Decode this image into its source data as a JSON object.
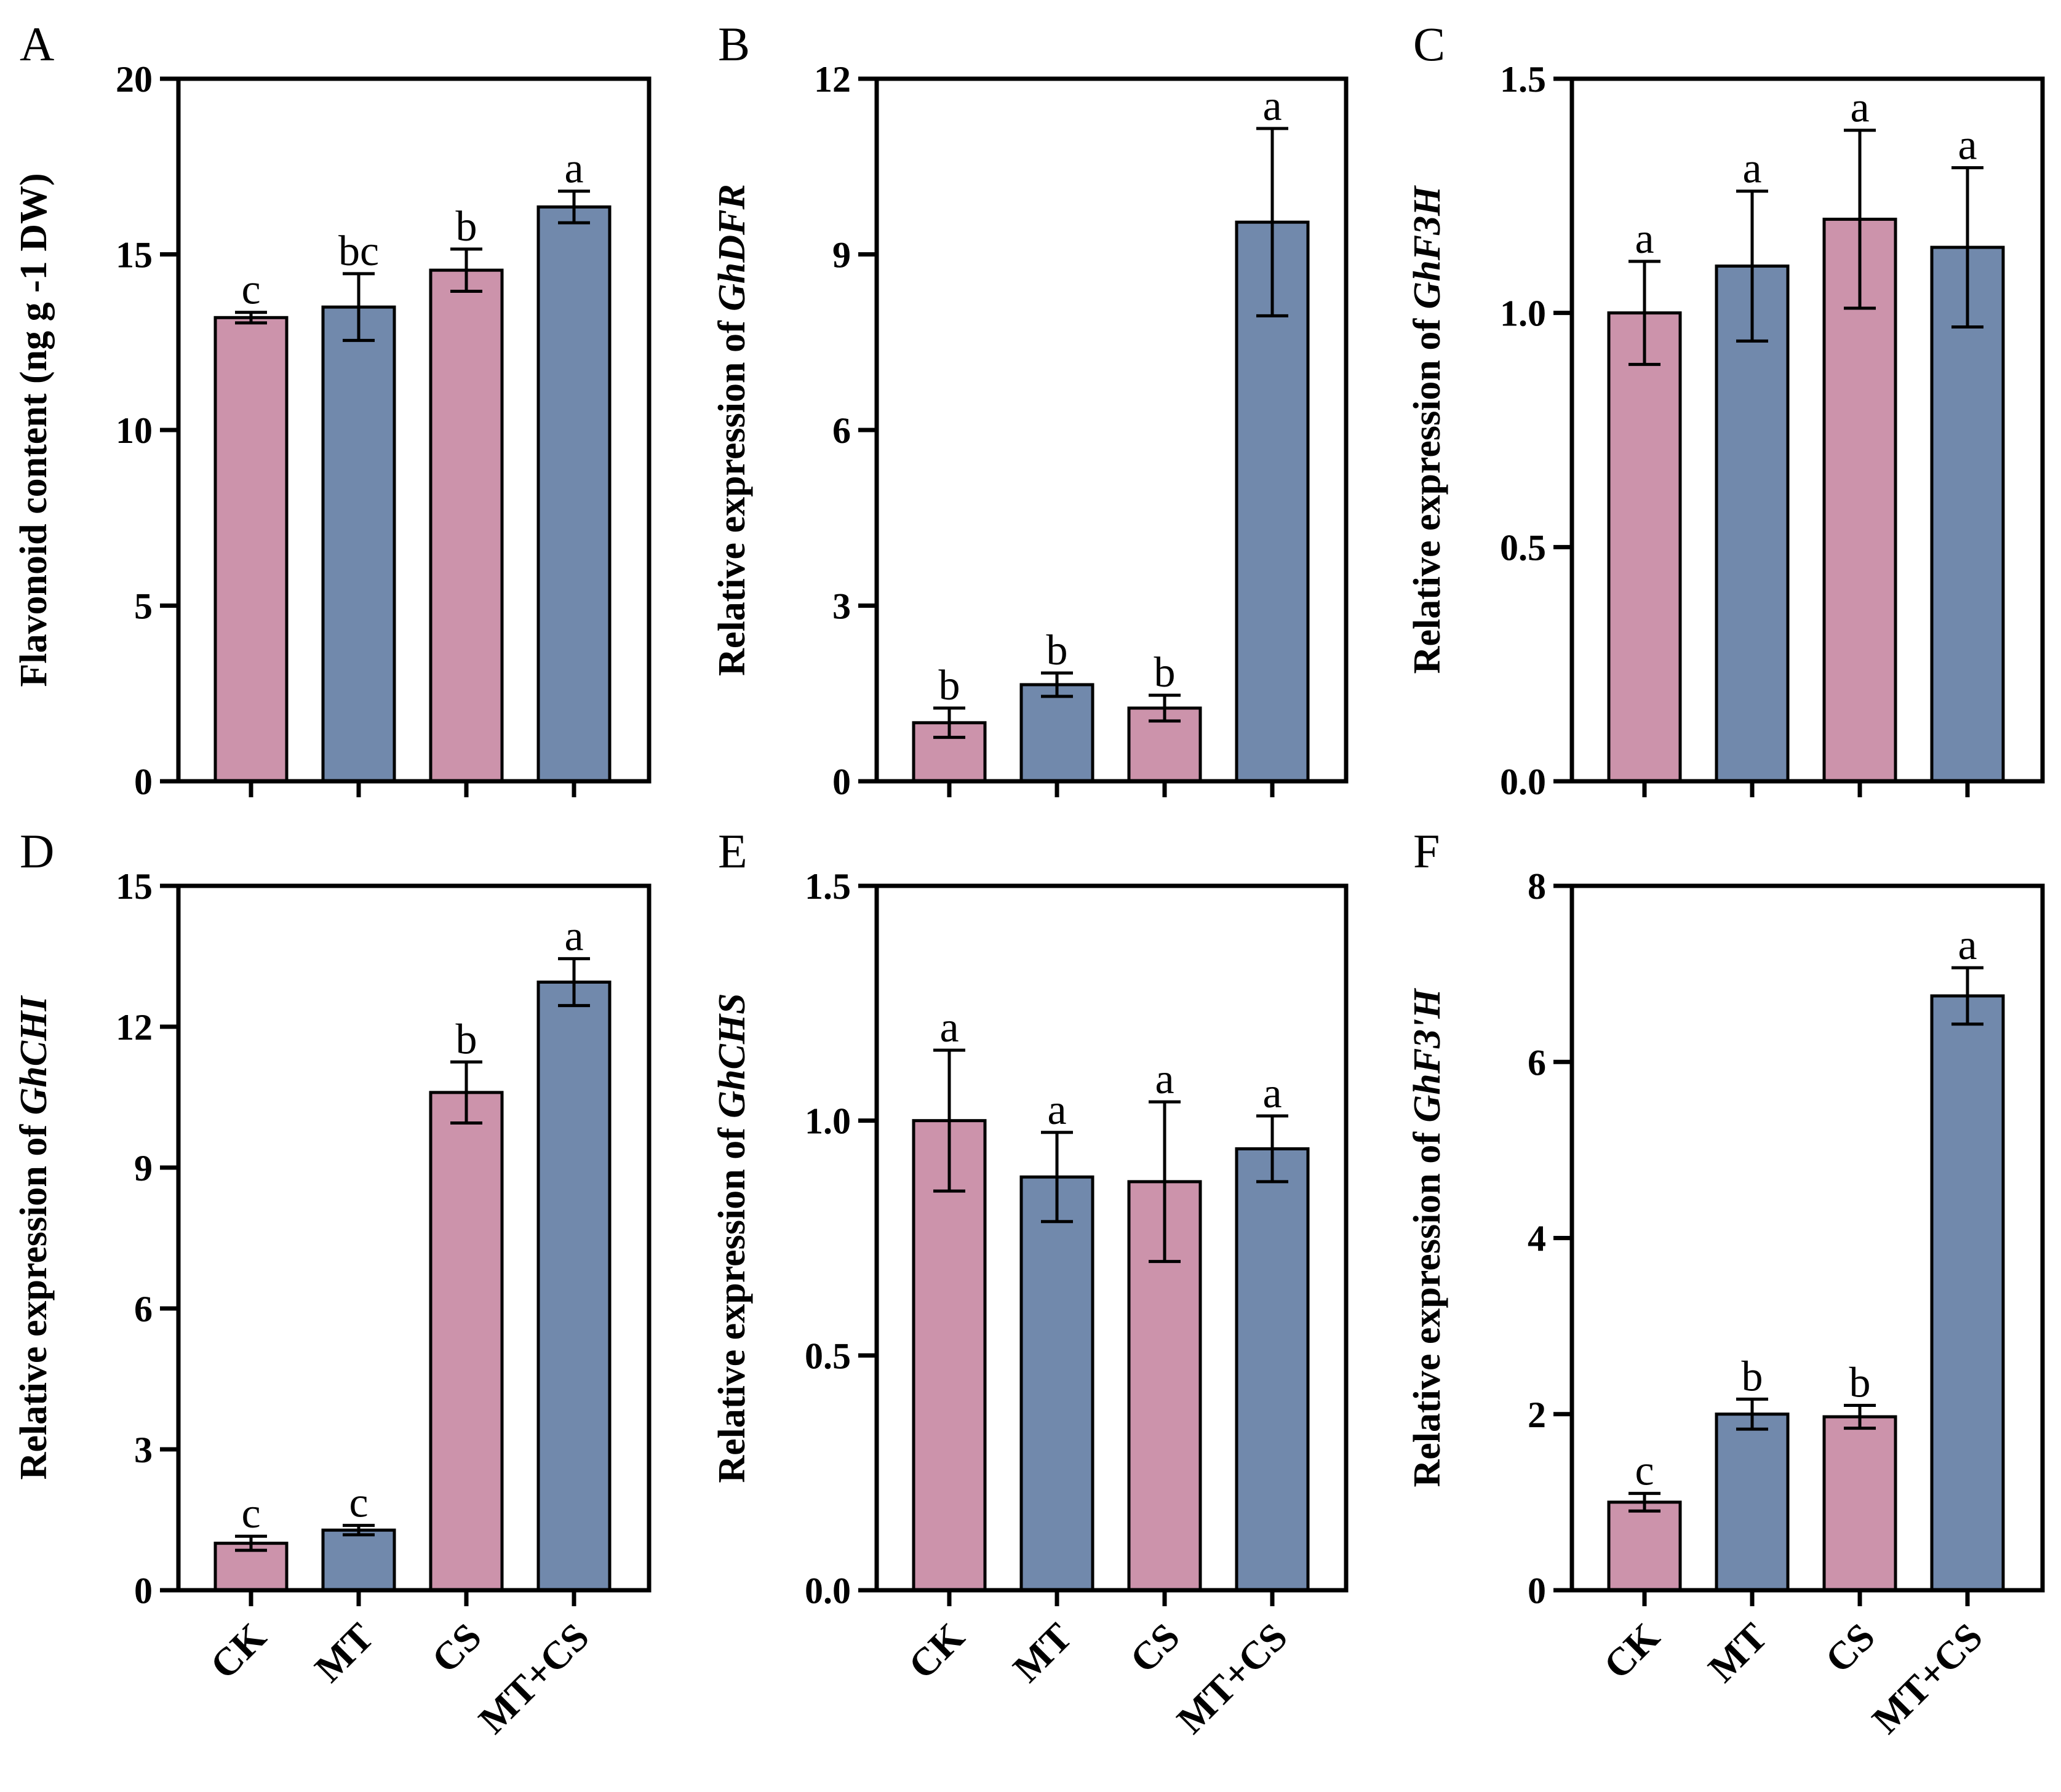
{
  "figure": {
    "colors": {
      "pink": "#cc93ab",
      "blue": "#7189ac",
      "axis": "#000000"
    },
    "categories": [
      "CK",
      "MT",
      "CS",
      "MT+CS"
    ]
  },
  "chart_data": [
    {
      "panel": "A",
      "type": "bar",
      "ylabel": "Flavonoid content (ng g -1 DW)",
      "ylabel_prefix": "Flavonoid content (ng g -1 DW)",
      "ylabel_gene": "",
      "categories": [
        "CK",
        "MT",
        "CS",
        "MT+CS"
      ],
      "values": [
        13.2,
        13.5,
        14.55,
        16.35
      ],
      "errors": [
        0.15,
        0.95,
        0.6,
        0.45
      ],
      "letters": [
        "c",
        "bc",
        "b",
        "a"
      ],
      "ylim": [
        0,
        20
      ],
      "yticks": [
        0,
        5,
        10,
        15,
        20
      ],
      "tick_labels": [
        "0",
        "5",
        "10",
        "15",
        "20"
      ],
      "show_xlabels": false
    },
    {
      "panel": "B",
      "type": "bar",
      "ylabel": "Relative expression of GhDFR",
      "ylabel_prefix": "Relative expression of ",
      "ylabel_gene": "GhDFR",
      "categories": [
        "CK",
        "MT",
        "CS",
        "MT+CS"
      ],
      "values": [
        1.0,
        1.65,
        1.25,
        9.55
      ],
      "errors": [
        0.25,
        0.2,
        0.22,
        1.6
      ],
      "letters": [
        "b",
        "b",
        "b",
        "a"
      ],
      "ylim": [
        0,
        12
      ],
      "yticks": [
        0,
        3,
        6,
        9,
        12
      ],
      "tick_labels": [
        "0",
        "3",
        "6",
        "9",
        "12"
      ],
      "show_xlabels": false
    },
    {
      "panel": "C",
      "type": "bar",
      "ylabel": "Relative expression of GhF3H",
      "ylabel_prefix": "Relative expression of ",
      "ylabel_gene": "GhF3H",
      "categories": [
        "CK",
        "MT",
        "CS",
        "MT+CS"
      ],
      "values": [
        1.0,
        1.1,
        1.2,
        1.14
      ],
      "errors": [
        0.11,
        0.16,
        0.19,
        0.17
      ],
      "letters": [
        "a",
        "a",
        "a",
        "a"
      ],
      "ylim": [
        0,
        1.5
      ],
      "yticks": [
        0,
        0.5,
        1.0,
        1.5
      ],
      "tick_labels": [
        "0.0",
        "0.5",
        "1.0",
        "1.5"
      ],
      "show_xlabels": false
    },
    {
      "panel": "D",
      "type": "bar",
      "ylabel": "Relative expression of GhCHI",
      "ylabel_prefix": "Relative expression of ",
      "ylabel_gene": "GhCHI",
      "categories": [
        "CK",
        "MT",
        "CS",
        "MT+CS"
      ],
      "values": [
        1.0,
        1.28,
        10.6,
        12.95
      ],
      "errors": [
        0.15,
        0.1,
        0.65,
        0.5
      ],
      "letters": [
        "c",
        "c",
        "b",
        "a"
      ],
      "ylim": [
        0,
        15
      ],
      "yticks": [
        0,
        3,
        6,
        9,
        12,
        15
      ],
      "tick_labels": [
        "0",
        "3",
        "6",
        "9",
        "12",
        "15"
      ],
      "show_xlabels": true
    },
    {
      "panel": "E",
      "type": "bar",
      "ylabel": "Relative expression of GhCHS",
      "ylabel_prefix": "Relative expression of ",
      "ylabel_gene": "GhCHS",
      "categories": [
        "CK",
        "MT",
        "CS",
        "MT+CS"
      ],
      "values": [
        1.0,
        0.88,
        0.87,
        0.94
      ],
      "errors": [
        0.15,
        0.095,
        0.17,
        0.07
      ],
      "letters": [
        "a",
        "a",
        "a",
        "a"
      ],
      "ylim": [
        0,
        1.5
      ],
      "yticks": [
        0,
        0.5,
        1.0,
        1.5
      ],
      "tick_labels": [
        "0.0",
        "0.5",
        "1.0",
        "1.5"
      ],
      "show_xlabels": true
    },
    {
      "panel": "F",
      "type": "bar",
      "ylabel": "Relative expression of GhF3'H",
      "ylabel_prefix": "Relative expression of ",
      "ylabel_gene": "GhF3'H",
      "categories": [
        "CK",
        "MT",
        "CS",
        "MT+CS"
      ],
      "values": [
        1.0,
        2.0,
        1.97,
        6.75
      ],
      "errors": [
        0.1,
        0.17,
        0.13,
        0.32
      ],
      "letters": [
        "c",
        "b",
        "b",
        "a"
      ],
      "ylim": [
        0,
        8
      ],
      "yticks": [
        0,
        2,
        4,
        6,
        8
      ],
      "tick_labels": [
        "0",
        "2",
        "4",
        "6",
        "8"
      ],
      "show_xlabels": true
    }
  ]
}
